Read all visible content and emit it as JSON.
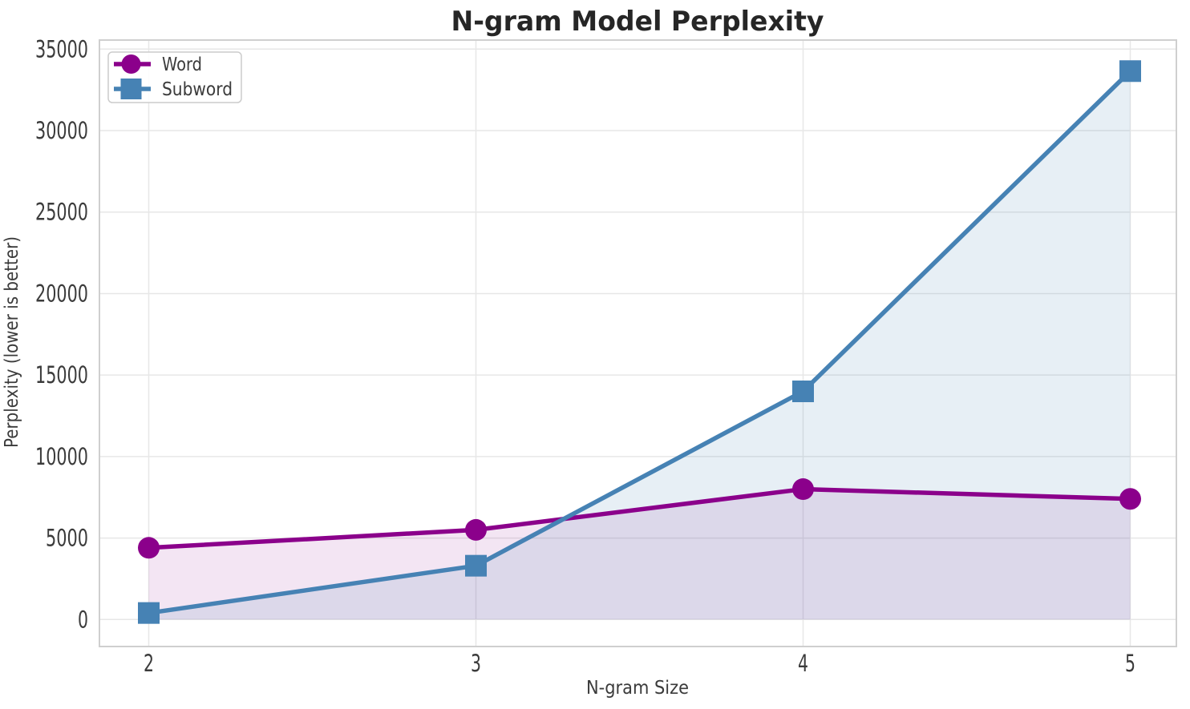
{
  "figure": {
    "background": "#ffffff",
    "text_color": "#3b3b3b",
    "title_color": "#262626",
    "grid_color": "#e7e7e7",
    "spine_color": "#cfcfcf"
  },
  "chart_data": {
    "type": "line",
    "title": "N-gram Model Perplexity",
    "xlabel": "N-gram Size",
    "ylabel": "Perplexity (lower is better)",
    "x": [
      2,
      3,
      4,
      5
    ],
    "xticks": [
      2,
      3,
      4,
      5
    ],
    "yticks": [
      0,
      5000,
      10000,
      15000,
      20000,
      25000,
      30000,
      35000
    ],
    "ylim": [
      0,
      35000
    ],
    "grid": true,
    "legend_position": "upper-left",
    "series": [
      {
        "name": "Word",
        "values": [
          4400,
          5500,
          8000,
          7400
        ],
        "color": "#8B008B",
        "marker": "circle",
        "fill_below": true,
        "fill_opacity": 0.1
      },
      {
        "name": "Subword",
        "values": [
          400,
          3300,
          14000,
          33650
        ],
        "color": "#4682B4",
        "marker": "square",
        "fill_below": true,
        "fill_opacity": 0.13
      }
    ]
  },
  "legend": {
    "items": [
      {
        "label": "Word"
      },
      {
        "label": "Subword"
      }
    ]
  }
}
